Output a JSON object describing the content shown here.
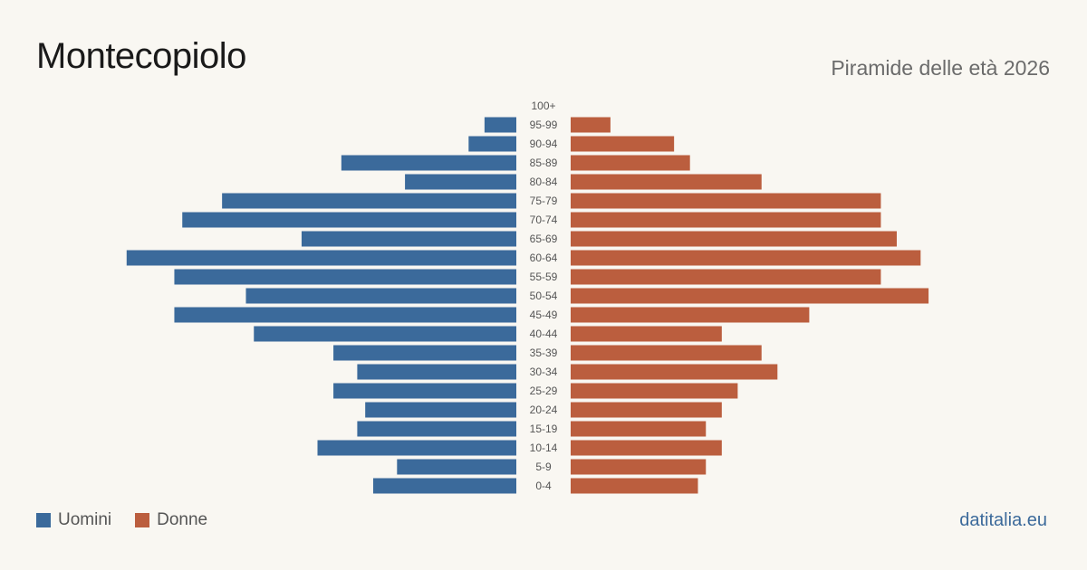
{
  "header": {
    "title": "Montecopiolo",
    "subtitle": "Piramide delle età 2026"
  },
  "legend": {
    "men_label": "Uomini",
    "women_label": "Donne"
  },
  "source": "datitalia.eu",
  "colors": {
    "men": "#3b6a9b",
    "women": "#bb5e3e",
    "background": "#f9f7f2"
  },
  "chart_data": {
    "type": "bar",
    "orientation": "horizontal-diverging",
    "title": "Montecopiolo",
    "subtitle": "Piramide delle età 2026",
    "categories": [
      "100+",
      "95-99",
      "90-94",
      "85-89",
      "80-84",
      "75-79",
      "70-74",
      "65-69",
      "60-64",
      "55-59",
      "50-54",
      "45-49",
      "40-44",
      "35-39",
      "30-34",
      "25-29",
      "20-24",
      "15-19",
      "10-14",
      "5-9",
      "0-4"
    ],
    "series": [
      {
        "name": "Uomini",
        "values": [
          0,
          4,
          6,
          22,
          14,
          37,
          42,
          27,
          49,
          43,
          34,
          43,
          33,
          23,
          20,
          23,
          19,
          20,
          25,
          15,
          18
        ]
      },
      {
        "name": "Donne",
        "values": [
          0,
          5,
          13,
          15,
          24,
          39,
          39,
          41,
          44,
          39,
          45,
          30,
          19,
          24,
          26,
          21,
          19,
          17,
          19,
          17,
          16
        ]
      }
    ],
    "legend_position": "bottom-left",
    "grid": false
  }
}
